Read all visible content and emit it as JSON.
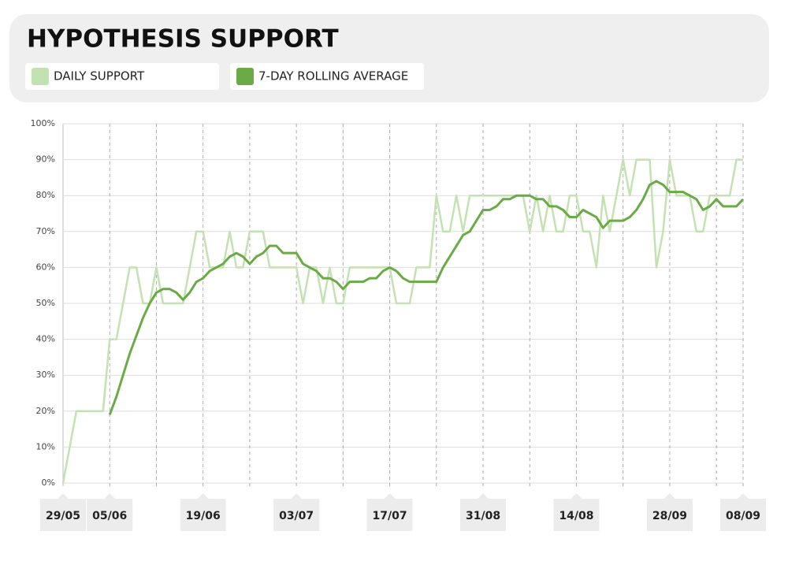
{
  "chart_data": {
    "type": "line",
    "title": "HYPOTHESIS SUPPORT",
    "categories": [
      "29/05",
      null,
      null,
      null,
      null,
      null,
      null,
      "05/06",
      null,
      null,
      null,
      null,
      null,
      null,
      null,
      null,
      null,
      null,
      null,
      null,
      null,
      "19/06",
      null,
      null,
      null,
      null,
      null,
      null,
      null,
      null,
      null,
      null,
      null,
      null,
      null,
      "03/07",
      null,
      null,
      null,
      null,
      null,
      null,
      null,
      null,
      null,
      null,
      null,
      null,
      null,
      "17/07",
      null,
      null,
      null,
      null,
      null,
      null,
      null,
      null,
      null,
      null,
      null,
      null,
      null,
      "31/08",
      null,
      null,
      null,
      null,
      null,
      null,
      null,
      null,
      null,
      null,
      null,
      null,
      null,
      "14/08",
      null,
      null,
      null,
      null,
      null,
      null,
      null,
      null,
      null,
      null,
      null,
      null,
      null,
      "28/09",
      null,
      null,
      null,
      null,
      null,
      null,
      null,
      null,
      null,
      null,
      "08/09"
    ],
    "series": [
      {
        "name": "DAILY SUPPORT",
        "color": "#c3e2b1",
        "values": [
          0,
          10,
          20,
          20,
          20,
          20,
          20,
          40,
          40,
          50,
          60,
          60,
          50,
          50,
          60,
          50,
          50,
          50,
          50,
          60,
          70,
          70,
          60,
          60,
          60,
          70,
          60,
          60,
          70,
          70,
          70,
          60,
          60,
          60,
          60,
          60,
          50,
          60,
          60,
          50,
          60,
          50,
          50,
          60,
          60,
          60,
          60,
          60,
          60,
          60,
          50,
          50,
          50,
          60,
          60,
          60,
          80,
          70,
          70,
          80,
          70,
          80,
          80,
          80,
          80,
          80,
          80,
          80,
          80,
          80,
          70,
          80,
          70,
          80,
          70,
          70,
          80,
          80,
          70,
          70,
          60,
          80,
          70,
          80,
          90,
          80,
          90,
          90,
          90,
          60,
          70,
          90,
          80,
          80,
          80,
          70,
          70,
          80,
          80,
          80,
          80,
          90,
          90
        ]
      },
      {
        "name": "7-DAY ROLLING AVERAGE",
        "color": "#6aaa47",
        "values": [
          null,
          null,
          null,
          null,
          null,
          null,
          null,
          19,
          24,
          30,
          36,
          41,
          46,
          50,
          53,
          54,
          54,
          53,
          51,
          53,
          56,
          57,
          59,
          60,
          61,
          63,
          64,
          63,
          61,
          63,
          64,
          66,
          66,
          64,
          64,
          64,
          61,
          60,
          59,
          57,
          57,
          56,
          54,
          56,
          56,
          56,
          57,
          57,
          59,
          60,
          59,
          57,
          56,
          56,
          56,
          56,
          56,
          60,
          63,
          66,
          69,
          70,
          73,
          76,
          76,
          77,
          79,
          79,
          80,
          80,
          80,
          79,
          79,
          77,
          77,
          76,
          74,
          74,
          76,
          75,
          74,
          71,
          73,
          73,
          73,
          74,
          76,
          79,
          83,
          84,
          83,
          81,
          81,
          81,
          80,
          79,
          76,
          77,
          79,
          77,
          77,
          77,
          79
        ]
      }
    ],
    "ylim": [
      0,
      100
    ],
    "yticks": [
      {
        "value": 0,
        "label": "0%"
      },
      {
        "value": 10,
        "label": "10%"
      },
      {
        "value": 20,
        "label": "20%"
      },
      {
        "value": 30,
        "label": "30%"
      },
      {
        "value": 40,
        "label": "40%"
      },
      {
        "value": 50,
        "label": "50%"
      },
      {
        "value": 60,
        "label": "60%"
      },
      {
        "value": 70,
        "label": "70%"
      },
      {
        "value": 80,
        "label": "80%"
      },
      {
        "value": 90,
        "label": "90%"
      },
      {
        "value": 100,
        "label": "100%"
      }
    ],
    "grid": true
  }
}
